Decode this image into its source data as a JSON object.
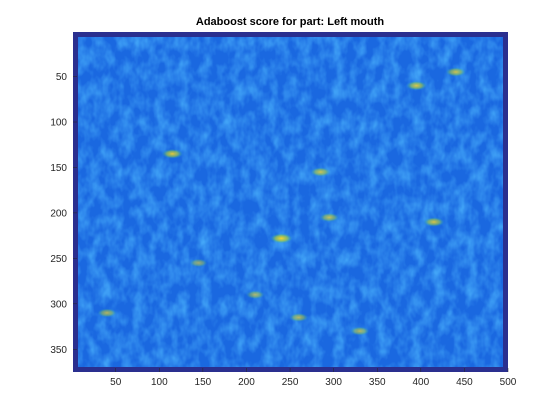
{
  "chart_data": {
    "type": "heatmap",
    "title": "Adaboost score for part: Left mouth",
    "xlabel": "",
    "ylabel": "",
    "xlim": [
      1,
      500
    ],
    "ylim": [
      1,
      375
    ],
    "y_reversed": true,
    "x_ticks": [
      50,
      100,
      150,
      200,
      250,
      300,
      350,
      400,
      450,
      500
    ],
    "y_ticks": [
      50,
      100,
      150,
      200,
      250,
      300,
      350
    ],
    "colormap": "parula",
    "colors": {
      "low": "#352a87",
      "mid_low": "#0f5cdd",
      "mid": "#1cb4a7",
      "high": "#fbd32b",
      "border": "#2a2f8f"
    },
    "hotspots": [
      {
        "x": 115,
        "y": 135,
        "level": 0.9
      },
      {
        "x": 240,
        "y": 228,
        "level": 1.0
      },
      {
        "x": 285,
        "y": 155,
        "level": 0.8
      },
      {
        "x": 295,
        "y": 205,
        "level": 0.75
      },
      {
        "x": 415,
        "y": 210,
        "level": 0.85
      },
      {
        "x": 395,
        "y": 60,
        "level": 0.85
      },
      {
        "x": 440,
        "y": 45,
        "level": 0.8
      },
      {
        "x": 330,
        "y": 330,
        "level": 0.7
      },
      {
        "x": 40,
        "y": 310,
        "level": 0.7
      },
      {
        "x": 260,
        "y": 315,
        "level": 0.7
      },
      {
        "x": 210,
        "y": 290,
        "level": 0.65
      },
      {
        "x": 145,
        "y": 255,
        "level": 0.6
      }
    ]
  }
}
